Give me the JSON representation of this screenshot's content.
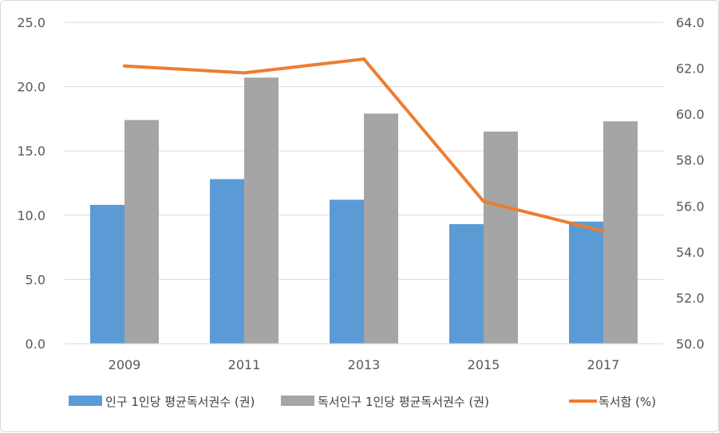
{
  "chart_data": {
    "type": "bar",
    "categories": [
      "2009",
      "2011",
      "2013",
      "2015",
      "2017"
    ],
    "series": [
      {
        "name": "인구 1인당 평균독서권수 (권)",
        "kind": "bar",
        "axis": "left",
        "color": "#5b9bd5",
        "values": [
          10.8,
          12.8,
          11.2,
          9.3,
          9.5
        ]
      },
      {
        "name": "독서인구 1인당 평균독서권수 (권)",
        "kind": "bar",
        "axis": "left",
        "color": "#a5a5a5",
        "values": [
          17.4,
          20.7,
          17.9,
          16.5,
          17.3
        ]
      },
      {
        "name": "독서함 (%)",
        "kind": "line",
        "axis": "right",
        "color": "#ed7d31",
        "values": [
          62.1,
          61.8,
          62.4,
          56.2,
          54.9
        ]
      }
    ],
    "y_left": {
      "min": 0,
      "max": 25,
      "ticks": [
        "0.0",
        "5.0",
        "10.0",
        "15.0",
        "20.0",
        "25.0"
      ]
    },
    "y_right": {
      "min": 50,
      "max": 64,
      "ticks": [
        "50.0",
        "52.0",
        "54.0",
        "56.0",
        "58.0",
        "60.0",
        "62.0",
        "64.0"
      ]
    },
    "grid": true,
    "legend_position": "bottom"
  }
}
